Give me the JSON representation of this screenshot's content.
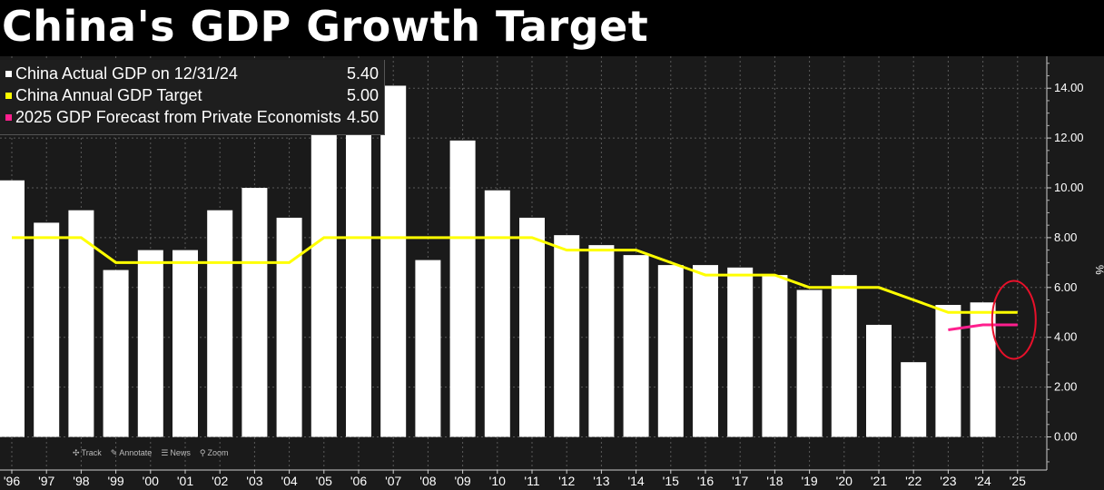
{
  "title": "China's GDP Growth Target",
  "legend": [
    {
      "label": "China Actual GDP on 12/31/24",
      "value": "5.40",
      "color": "#ffffff"
    },
    {
      "label": "China Annual GDP Target",
      "value": "5.00",
      "color": "#ffff00"
    },
    {
      "label": "2025 GDP Forecast from Private Economists",
      "value": "4.50",
      "color": "#ff1f8e"
    }
  ],
  "toolbar": [
    {
      "label": "Track",
      "icon": "crosshair-icon",
      "glyph": "✣"
    },
    {
      "label": "Annotate",
      "icon": "pencil-icon",
      "glyph": "✎"
    },
    {
      "label": "News",
      "icon": "news-icon",
      "glyph": "☰"
    },
    {
      "label": "Zoom",
      "icon": "magnifier-icon",
      "glyph": "⚲"
    }
  ],
  "colors": {
    "background": "#1a1a1a",
    "bars": "#ffffff",
    "target_line": "#ffff00",
    "forecast_line": "#ff1f8e",
    "highlight_circle": "#e8102a",
    "grid": "#5a5a5a"
  },
  "chart_data": {
    "type": "bar",
    "categories": [
      "'96",
      "'97",
      "'98",
      "'99",
      "'00",
      "'01",
      "'02",
      "'03",
      "'04",
      "'05",
      "'06",
      "'07",
      "'08",
      "'09",
      "'10",
      "'11",
      "'12",
      "'13",
      "'14",
      "'15",
      "'16",
      "'17",
      "'18",
      "'19",
      "'20",
      "'21",
      "'22",
      "'23",
      "'24",
      "'25"
    ],
    "series": [
      {
        "name": "China Actual GDP on 12/31/24",
        "kind": "bar",
        "values": [
          10.3,
          8.6,
          9.1,
          6.7,
          7.5,
          7.5,
          9.1,
          10.0,
          8.8,
          12.4,
          14.1,
          14.1,
          7.1,
          11.9,
          9.9,
          8.8,
          8.1,
          7.7,
          7.3,
          6.9,
          6.9,
          6.8,
          6.5,
          5.9,
          6.5,
          4.5,
          3.0,
          5.3,
          5.4,
          null
        ]
      },
      {
        "name": "China Annual GDP Target",
        "kind": "step-line",
        "values": [
          8.0,
          8.0,
          8.0,
          7.0,
          7.0,
          7.0,
          7.0,
          7.0,
          7.0,
          8.0,
          8.0,
          8.0,
          8.0,
          8.0,
          8.0,
          8.0,
          7.5,
          7.5,
          7.5,
          7.0,
          6.5,
          6.5,
          6.5,
          6.0,
          6.0,
          6.0,
          5.5,
          5.0,
          5.0,
          5.0
        ]
      },
      {
        "name": "2025 GDP Forecast from Private Economists",
        "kind": "line",
        "values": [
          null,
          null,
          null,
          null,
          null,
          null,
          null,
          null,
          null,
          null,
          null,
          null,
          null,
          null,
          null,
          null,
          null,
          null,
          null,
          null,
          null,
          null,
          null,
          null,
          null,
          null,
          null,
          4.3,
          4.5,
          4.5
        ]
      }
    ],
    "ylim": [
      -1.3,
      15
    ],
    "yticks": [
      0,
      2,
      4,
      6,
      8,
      10,
      12,
      14
    ],
    "ytick_labels": [
      "0.00",
      "2.00",
      "4.00",
      "6.00",
      "8.00",
      "10.00",
      "12.00",
      "14.00"
    ],
    "ylabel": "%",
    "grid": true,
    "legend_position": "top-left",
    "annotation": "red circle around 2025 target and forecast"
  }
}
